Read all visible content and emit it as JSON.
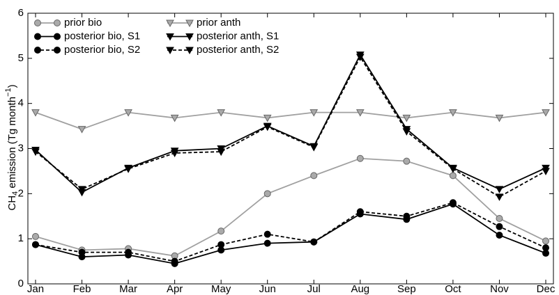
{
  "chart_data": {
    "type": "line",
    "ylabel": [
      "CH",
      "4",
      " emission (Tg month",
      "−1",
      ")"
    ],
    "categories": [
      "Jan",
      "Feb",
      "Mar",
      "Apr",
      "May",
      "Jun",
      "Jul",
      "Aug",
      "Sep",
      "Oct",
      "Nov",
      "Dec"
    ],
    "ylim": [
      0,
      6
    ],
    "yticks": [
      0,
      1,
      2,
      3,
      4,
      5,
      6
    ],
    "grid": false,
    "legend": "upper left",
    "series": [
      {
        "name": "prior bio",
        "color": "#999999",
        "marker": "circle",
        "dashed": false,
        "values": [
          1.05,
          0.75,
          0.78,
          0.62,
          1.17,
          2.0,
          2.4,
          2.78,
          2.72,
          2.4,
          1.45,
          0.95
        ]
      },
      {
        "name": "posterior bio, S1",
        "color": "#000000",
        "marker": "circle",
        "dashed": false,
        "values": [
          0.87,
          0.6,
          0.64,
          0.45,
          0.75,
          0.9,
          0.93,
          1.55,
          1.43,
          1.77,
          1.08,
          0.68
        ]
      },
      {
        "name": "posterior bio, S2",
        "color": "#000000",
        "marker": "circle",
        "dashed": true,
        "values": [
          0.87,
          0.7,
          0.7,
          0.5,
          0.87,
          1.1,
          0.93,
          1.6,
          1.5,
          1.8,
          1.27,
          0.8
        ]
      },
      {
        "name": "prior anth",
        "color": "#999999",
        "marker": "triangle",
        "dashed": false,
        "values": [
          3.8,
          3.43,
          3.8,
          3.68,
          3.8,
          3.68,
          3.8,
          3.8,
          3.68,
          3.8,
          3.68,
          3.8
        ]
      },
      {
        "name": "posterior anth, S1",
        "color": "#000000",
        "marker": "triangle",
        "dashed": false,
        "values": [
          2.97,
          2.03,
          2.57,
          2.95,
          3.0,
          3.5,
          3.05,
          5.08,
          3.43,
          2.57,
          2.1,
          2.57
        ]
      },
      {
        "name": "posterior anth, S2",
        "color": "#000000",
        "marker": "triangle",
        "dashed": true,
        "values": [
          2.93,
          2.1,
          2.55,
          2.9,
          2.93,
          3.48,
          3.03,
          5.03,
          3.38,
          2.55,
          1.93,
          2.5
        ]
      }
    ]
  }
}
